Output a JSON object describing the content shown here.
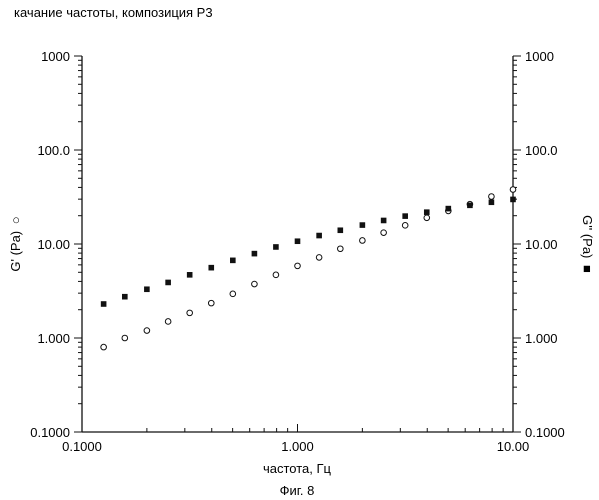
{
  "chart_data": {
    "type": "scatter",
    "title": "качание частоты, композиция Р3",
    "xlabel": "частота, Гц",
    "ylabel_left": "G' (Pa)",
    "ylabel_left_marker": "○",
    "ylabel_right": "G'' (Pa)",
    "ylabel_right_marker": "■",
    "x_scale": "log",
    "y_scale": "log",
    "xlim": [
      0.1,
      10
    ],
    "ylim": [
      0.1,
      1000
    ],
    "x_tick_labels": [
      "0.1000",
      "1.000",
      "10.00"
    ],
    "y_tick_labels": [
      "0.1000",
      "1.000",
      "10.00",
      "100.0",
      "1000"
    ],
    "x_ticks": [
      0.1,
      1,
      10
    ],
    "y_ticks": [
      0.1,
      1,
      10,
      100,
      1000
    ],
    "grid": false,
    "series": [
      {
        "marker": "open-circle",
        "axis": "left",
        "x": [
          0.126,
          0.158,
          0.2,
          0.251,
          0.316,
          0.398,
          0.501,
          0.631,
          0.794,
          1.0,
          1.26,
          1.58,
          2.0,
          2.51,
          3.16,
          3.98,
          5.01,
          6.31,
          7.94,
          10.0
        ],
        "y": [
          0.8,
          1.0,
          1.2,
          1.5,
          1.85,
          2.35,
          2.95,
          3.75,
          4.7,
          5.85,
          7.2,
          8.9,
          10.9,
          13.2,
          15.8,
          19.0,
          22.5,
          26.5,
          32.0,
          38.0
        ]
      },
      {
        "marker": "filled-square",
        "axis": "right",
        "x": [
          0.126,
          0.158,
          0.2,
          0.251,
          0.316,
          0.398,
          0.501,
          0.631,
          0.794,
          1.0,
          1.26,
          1.58,
          2.0,
          2.51,
          3.16,
          3.98,
          5.01,
          6.31,
          7.94,
          10.0
        ],
        "y": [
          2.3,
          2.75,
          3.3,
          3.9,
          4.7,
          5.6,
          6.7,
          7.9,
          9.3,
          10.7,
          12.3,
          14.0,
          15.9,
          17.8,
          19.8,
          21.8,
          23.8,
          25.8,
          27.8,
          29.8
        ]
      }
    ]
  },
  "caption": "Фиг. 8"
}
